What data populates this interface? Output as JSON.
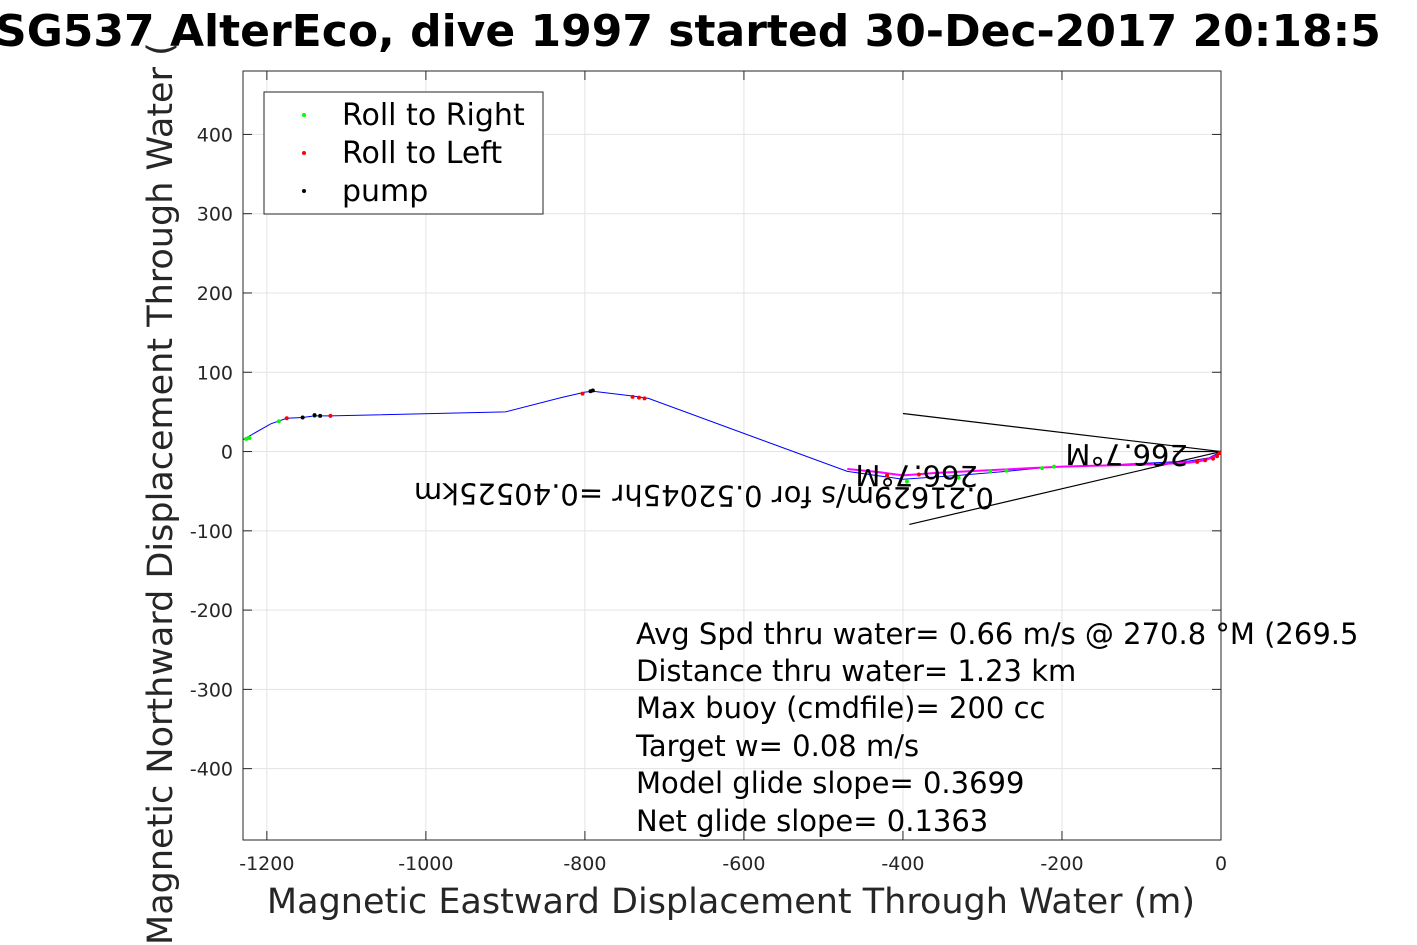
{
  "chart_data": {
    "type": "scatter",
    "title": "SG537 AlterEco, dive 1997 started 30-Dec-2017 20:18:5",
    "xlabel": "Magnetic Eastward Displacement Through Water (m)",
    "ylabel": "Magnetic Northward Displacement Through Water (",
    "xlim": [
      -1230,
      0
    ],
    "ylim": [
      -490,
      480
    ],
    "xticks": [
      -1200,
      -1000,
      -800,
      -600,
      -400,
      -200,
      0
    ],
    "yticks": [
      -400,
      -300,
      -200,
      -100,
      0,
      100,
      200,
      300,
      400
    ],
    "grid": true,
    "legend_position": "top-left",
    "legend": [
      {
        "label": "Roll to Right",
        "color": "#00ff00"
      },
      {
        "label": "Roll to Left",
        "color": "#ff0000"
      },
      {
        "label": "pump",
        "color": "#000000"
      }
    ],
    "track_color": "#0000ff",
    "track": {
      "x": [
        -1230,
        -1195,
        -1175,
        -1155,
        -1140,
        -1120,
        -900,
        -830,
        -800,
        -790,
        -740,
        -720,
        -470,
        -400,
        -330,
        -270,
        -220,
        -160,
        -100,
        -40,
        -15,
        0
      ],
      "y": [
        15,
        35,
        42,
        43,
        45,
        45,
        50,
        68,
        75,
        76,
        70,
        67,
        -25,
        -35,
        -30,
        -25,
        -20,
        -18,
        -15,
        -12,
        -8,
        0
      ]
    },
    "segments": [
      {
        "color": "#ff00ff",
        "x": [
          -470,
          -430,
          -400,
          -360,
          -320,
          -280,
          -240,
          -200,
          -160,
          -120,
          -80,
          -40,
          -20,
          -10,
          0
        ],
        "y": [
          -22,
          -26,
          -30,
          -27,
          -25,
          -23,
          -21,
          -19,
          -18,
          -17,
          -16,
          -14,
          -11,
          -7,
          -2
        ]
      }
    ],
    "roll_right": {
      "x": [
        -1226,
        -1222,
        -1185,
        -1140,
        -395,
        -330,
        -290,
        -270,
        -225,
        -210
      ],
      "y": [
        16,
        17,
        38,
        45,
        -38,
        -33,
        -25,
        -24,
        -21,
        -19
      ]
    },
    "roll_left": {
      "x": [
        -1175,
        -1120,
        -803,
        -740,
        -732,
        -725,
        -420,
        -380,
        -30,
        -20,
        -10,
        -5,
        -2
      ],
      "y": [
        42,
        45,
        73,
        69,
        68,
        67,
        -30,
        -29,
        -13,
        -11,
        -9,
        -6,
        -2
      ]
    },
    "pump": {
      "x": [
        -1155,
        -1140,
        -1133,
        -793,
        -790
      ],
      "y": [
        43,
        46,
        45,
        76,
        77
      ]
    },
    "current_lines": {
      "color": "#000000",
      "from": [
        0,
        0
      ],
      "to": [
        [
          -400,
          48
        ],
        [
          -392,
          -92
        ],
        [
          -60,
          0
        ]
      ]
    },
    "rotated_labels": [
      "0.21629m/s for 0.52045hr =0.40525km",
      "266.7°M",
      "266.7°M"
    ],
    "annotations": [
      "Avg Spd thru water=  0.66 m/s @ 270.8 °M (269.5",
      "Distance thru water=  1.23 km",
      "Max buoy (cmdfile)= 200 cc",
      "Target w= 0.08 m/s",
      "Model glide slope= 0.3699",
      "Net glide slope= 0.1363"
    ]
  }
}
